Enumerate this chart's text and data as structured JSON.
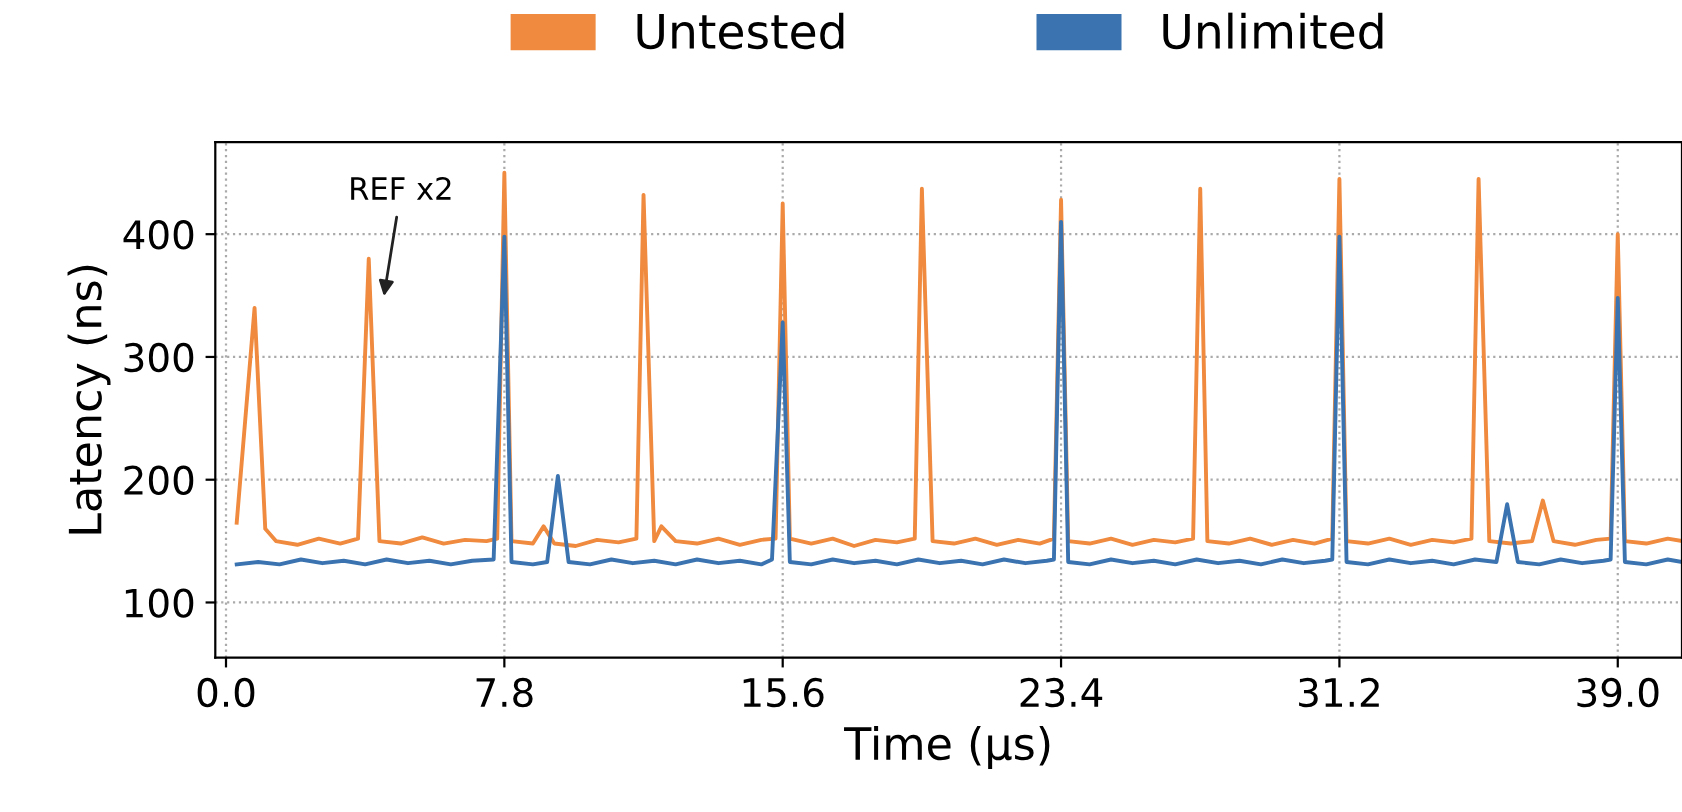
{
  "chart_data": {
    "type": "line",
    "xlabel": "Time (μs)",
    "ylabel": "Latency (ns)",
    "xlim": [
      -0.3,
      40.8
    ],
    "ylim": [
      55,
      475
    ],
    "xticks": [
      {
        "value": 0,
        "label": "0.0"
      },
      7.8,
      15.6,
      23.4,
      31.2,
      {
        "value": 39,
        "label": "39.0"
      }
    ],
    "yticks": [
      100,
      200,
      300,
      400
    ],
    "grid": true,
    "legend": "top",
    "line_style": "solid",
    "annotations": [
      {
        "text": "REF x2",
        "x": 4.0,
        "y": 380
      }
    ],
    "series": [
      {
        "name": "Untested",
        "color": "#ef8a3e",
        "x": [
          0.3,
          0.8,
          1.1,
          1.4,
          2.0,
          2.6,
          3.2,
          3.7,
          4.0,
          4.3,
          4.9,
          5.5,
          6.1,
          6.7,
          7.3,
          7.6,
          7.8,
          8.0,
          8.6,
          8.9,
          9.2,
          9.8,
          10.4,
          11.0,
          11.5,
          11.7,
          12.0,
          12.2,
          12.6,
          13.2,
          13.8,
          14.4,
          15.0,
          15.4,
          15.6,
          15.8,
          16.4,
          17.0,
          17.6,
          18.2,
          18.8,
          19.3,
          19.5,
          19.8,
          20.4,
          21.0,
          21.6,
          22.2,
          22.8,
          23.2,
          23.4,
          23.6,
          24.2,
          24.8,
          25.4,
          26.0,
          26.6,
          27.1,
          27.3,
          27.5,
          28.1,
          28.7,
          29.3,
          29.9,
          30.5,
          31.0,
          31.2,
          31.4,
          32.0,
          32.6,
          33.2,
          33.8,
          34.4,
          34.9,
          35.1,
          35.4,
          36.0,
          36.6,
          36.9,
          37.2,
          37.8,
          38.4,
          38.8,
          39.0,
          39.2,
          39.8,
          40.4,
          40.8
        ],
        "values": [
          165,
          340,
          160,
          150,
          147,
          152,
          148,
          152,
          380,
          150,
          148,
          153,
          148,
          151,
          150,
          152,
          450,
          150,
          148,
          162,
          148,
          146,
          151,
          149,
          152,
          432,
          150,
          162,
          150,
          148,
          152,
          147,
          151,
          152,
          425,
          152,
          148,
          152,
          146,
          151,
          149,
          152,
          437,
          150,
          148,
          152,
          147,
          151,
          148,
          152,
          428,
          150,
          148,
          152,
          147,
          151,
          149,
          152,
          437,
          150,
          148,
          152,
          147,
          151,
          148,
          152,
          445,
          150,
          148,
          152,
          147,
          151,
          149,
          152,
          445,
          150,
          148,
          150,
          183,
          150,
          147,
          151,
          152,
          400,
          150,
          148,
          152,
          150
        ]
      },
      {
        "name": "Unlimited",
        "color": "#3a73b0",
        "x": [
          0.3,
          0.9,
          1.5,
          2.1,
          2.7,
          3.3,
          3.9,
          4.5,
          5.1,
          5.7,
          6.3,
          6.9,
          7.5,
          7.8,
          8.0,
          8.6,
          9.0,
          9.3,
          9.6,
          10.2,
          10.8,
          11.4,
          12.0,
          12.6,
          13.2,
          13.8,
          14.4,
          15.0,
          15.3,
          15.6,
          15.8,
          16.4,
          17.0,
          17.6,
          18.2,
          18.8,
          19.4,
          20.0,
          20.6,
          21.2,
          21.8,
          22.4,
          23.0,
          23.2,
          23.4,
          23.6,
          24.2,
          24.8,
          25.4,
          26.0,
          26.6,
          27.2,
          27.8,
          28.4,
          29.0,
          29.6,
          30.2,
          30.8,
          31.0,
          31.2,
          31.4,
          32.0,
          32.6,
          33.2,
          33.8,
          34.4,
          35.0,
          35.6,
          35.9,
          36.2,
          36.8,
          37.4,
          38.0,
          38.6,
          38.8,
          39.0,
          39.2,
          39.8,
          40.4,
          40.8
        ],
        "values": [
          131,
          133,
          131,
          135,
          132,
          134,
          131,
          135,
          132,
          134,
          131,
          134,
          135,
          398,
          133,
          131,
          133,
          203,
          133,
          131,
          135,
          132,
          134,
          131,
          135,
          132,
          134,
          131,
          135,
          328,
          133,
          131,
          135,
          132,
          134,
          131,
          135,
          132,
          134,
          131,
          135,
          132,
          134,
          135,
          410,
          133,
          131,
          135,
          132,
          134,
          131,
          135,
          132,
          134,
          131,
          135,
          132,
          134,
          135,
          398,
          133,
          131,
          135,
          132,
          134,
          131,
          135,
          133,
          180,
          133,
          131,
          135,
          132,
          134,
          135,
          348,
          133,
          131,
          135,
          133
        ]
      }
    ]
  }
}
